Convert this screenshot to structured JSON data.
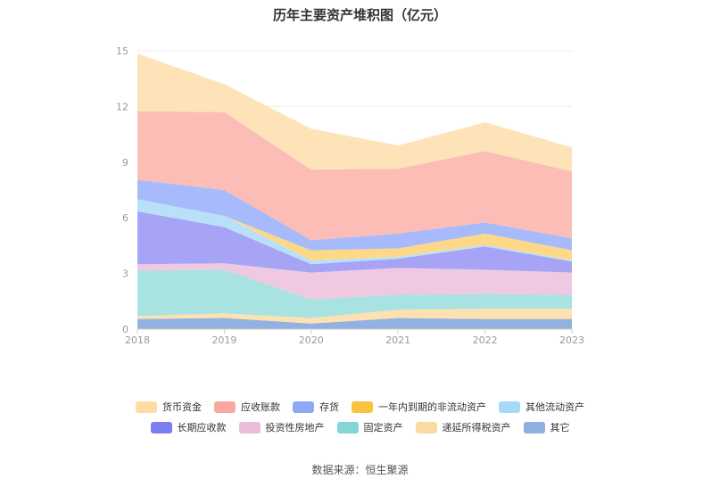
{
  "chart_data": {
    "type": "area",
    "stacked": true,
    "title": "历年主要资产堆积图（亿元）",
    "x": [
      "2018",
      "2019",
      "2020",
      "2021",
      "2022",
      "2023"
    ],
    "y_ticks": [
      "0",
      "3",
      "6",
      "9",
      "12",
      "15"
    ],
    "ylim": [
      0,
      15
    ],
    "grid": true,
    "legend_position": "bottom",
    "series": [
      {
        "name": "其它",
        "color": "#93b1e0",
        "values": [
          0.55,
          0.6,
          0.3,
          0.6,
          0.55,
          0.55
        ]
      },
      {
        "name": "递延所得税资产",
        "color": "#fde1b0",
        "values": [
          0.15,
          0.25,
          0.3,
          0.45,
          0.55,
          0.55
        ]
      },
      {
        "name": "固定资产",
        "color": "#a8e2e1",
        "values": [
          2.45,
          2.35,
          1.0,
          0.8,
          0.8,
          0.75
        ]
      },
      {
        "name": "投资性房地产",
        "color": "#efc9e2",
        "values": [
          0.35,
          0.35,
          1.45,
          1.45,
          1.3,
          1.2
        ]
      },
      {
        "name": "长期应收款",
        "color": "#a7a4f6",
        "values": [
          2.85,
          1.95,
          0.45,
          0.5,
          1.25,
          0.6
        ]
      },
      {
        "name": "其他流动资产",
        "color": "#b8e1f9",
        "values": [
          0.65,
          0.6,
          0.2,
          0.1,
          0.1,
          0.05
        ]
      },
      {
        "name": "一年内到期的非流动资产",
        "color": "#fdd887",
        "values": [
          0.0,
          0.0,
          0.55,
          0.45,
          0.6,
          0.55
        ]
      },
      {
        "name": "存货",
        "color": "#a7bbfc",
        "values": [
          1.05,
          1.4,
          0.55,
          0.8,
          0.6,
          0.65
        ]
      },
      {
        "name": "应收账款",
        "color": "#fdbdb7",
        "values": [
          3.7,
          4.2,
          3.8,
          3.5,
          3.85,
          3.6
        ]
      },
      {
        "name": "货币资金",
        "color": "#fde3b7",
        "values": [
          3.1,
          1.5,
          2.2,
          1.25,
          1.55,
          1.3
        ]
      }
    ]
  },
  "legend": {
    "rows": [
      [
        {
          "label": "货币资金",
          "color": "#fcdca4"
        },
        {
          "label": "应收账款",
          "color": "#f9a8a0"
        },
        {
          "label": "存货",
          "color": "#8ea8f6"
        },
        {
          "label": "一年内到期的非流动资产",
          "color": "#fbc23f"
        },
        {
          "label": "其他流动资产",
          "color": "#a5d9f7"
        }
      ],
      [
        {
          "label": "长期应收款",
          "color": "#7b7ef2"
        },
        {
          "label": "投资性房地产",
          "color": "#ebbcdc"
        },
        {
          "label": "固定资产",
          "color": "#86d5d6"
        },
        {
          "label": "递延所得税资产",
          "color": "#fcd9a0"
        },
        {
          "label": "其它",
          "color": "#8fafde"
        }
      ]
    ]
  },
  "source": "数据来源：恒生聚源"
}
